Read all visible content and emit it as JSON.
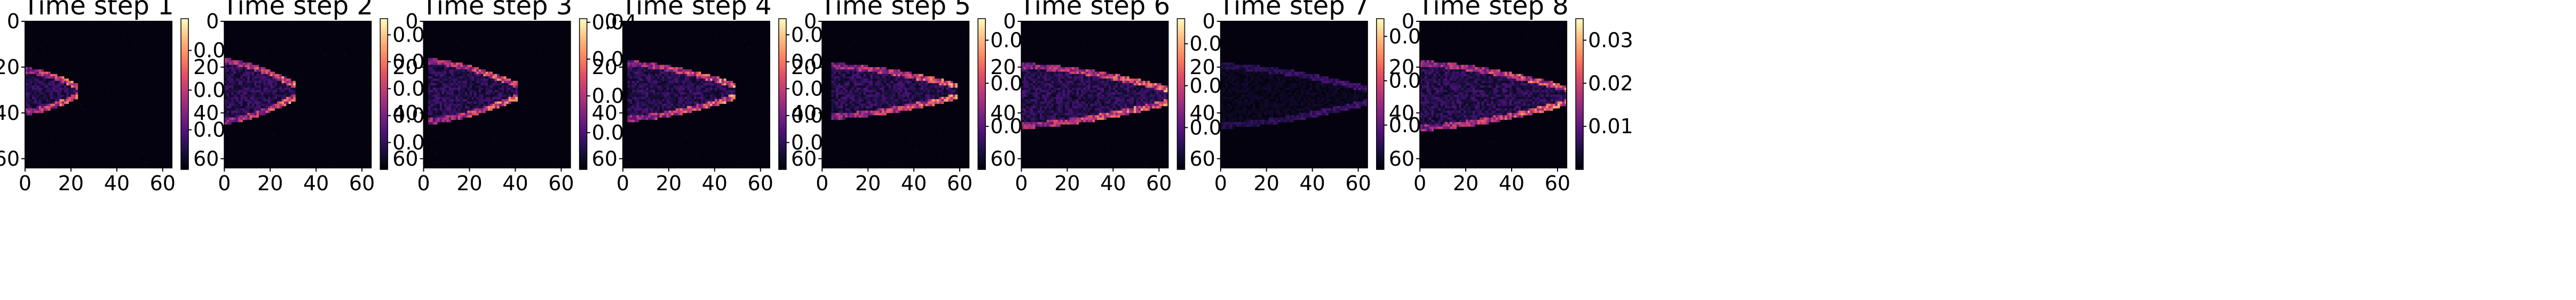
{
  "chart_data": [
    {
      "type": "heatmap",
      "title": "Time step 1",
      "x_ticks": [
        0,
        20,
        40,
        60
      ],
      "y_ticks": [
        0,
        20,
        40,
        60
      ],
      "xlim": [
        0,
        64
      ],
      "ylim": [
        64,
        0
      ],
      "colormap": "magma",
      "colorbar": {
        "ticks": [
          0.01,
          0.02,
          0.03
        ],
        "tick_labels": [
          "0.01",
          "0.02",
          "0.03"
        ],
        "range": [
          0,
          0.038
        ]
      },
      "features": {
        "tip_x": 22,
        "x_start": 0,
        "y_center": 30,
        "half_height": 8,
        "peak": 0.038
      }
    },
    {
      "type": "heatmap",
      "title": "Time step 2",
      "x_ticks": [
        0,
        20,
        40,
        60
      ],
      "y_ticks": [
        0,
        20,
        40,
        60
      ],
      "xlim": [
        0,
        64
      ],
      "ylim": [
        64,
        0
      ],
      "colormap": "magma",
      "colorbar": {
        "ticks": [
          0.005,
          0.01,
          0.015,
          0.02,
          0.025
        ],
        "tick_labels": [
          "0.005",
          "0.010",
          "0.015",
          "0.020",
          "0.025"
        ],
        "range": [
          0,
          0.028
        ]
      },
      "features": {
        "tip_x": 30,
        "x_start": 0,
        "y_center": 30,
        "half_height": 12,
        "peak": 0.028
      }
    },
    {
      "type": "heatmap",
      "title": "Time step 3",
      "x_ticks": [
        0,
        20,
        40,
        60
      ],
      "y_ticks": [
        0,
        20,
        40,
        60
      ],
      "xlim": [
        0,
        64
      ],
      "ylim": [
        64,
        0
      ],
      "colormap": "magma",
      "colorbar": {
        "ticks": [
          0.01,
          0.02,
          0.03,
          0.04
        ],
        "tick_labels": [
          "0.01",
          "0.02",
          "0.03",
          "0.04"
        ],
        "range": [
          0,
          0.041
        ]
      },
      "features": {
        "tip_x": 40,
        "x_start": 2,
        "y_center": 30,
        "half_height": 12,
        "peak": 0.041
      }
    },
    {
      "type": "heatmap",
      "title": "Time step 4",
      "x_ticks": [
        0,
        20,
        40,
        60
      ],
      "y_ticks": [
        0,
        20,
        40,
        60
      ],
      "xlim": [
        0,
        64
      ],
      "ylim": [
        64,
        0
      ],
      "colormap": "magma",
      "colorbar": {
        "ticks": [
          0.005,
          0.01,
          0.015,
          0.02,
          0.025
        ],
        "tick_labels": [
          "0.005",
          "0.010",
          "0.015",
          "0.020",
          "0.025"
        ],
        "range": [
          0,
          0.028
        ]
      },
      "features": {
        "tip_x": 48,
        "x_start": 2,
        "y_center": 30,
        "half_height": 11,
        "peak": 0.028
      }
    },
    {
      "type": "heatmap",
      "title": "Time step 5",
      "x_ticks": [
        0,
        20,
        40,
        60
      ],
      "y_ticks": [
        0,
        20,
        40,
        60
      ],
      "xlim": [
        0,
        64
      ],
      "ylim": [
        64,
        0
      ],
      "colormap": "magma",
      "colorbar": {
        "ticks": [
          0.01,
          0.02,
          0.03
        ],
        "tick_labels": [
          "0.01",
          "0.02",
          "0.03"
        ],
        "range": [
          0,
          0.035
        ]
      },
      "features": {
        "tip_x": 58,
        "x_start": 4,
        "y_center": 30,
        "half_height": 10,
        "peak": 0.035
      }
    },
    {
      "type": "heatmap",
      "title": "Time step 6",
      "x_ticks": [
        0,
        20,
        40,
        60
      ],
      "y_ticks": [
        0,
        20,
        40,
        60
      ],
      "xlim": [
        0,
        64
      ],
      "ylim": [
        64,
        0
      ],
      "colormap": "magma",
      "colorbar": {
        "ticks": [
          0.01,
          0.02,
          0.03
        ],
        "tick_labels": [
          "0.01",
          "0.02",
          "0.03"
        ],
        "range": [
          0,
          0.036
        ]
      },
      "features": {
        "tip_x": 64,
        "x_start": 0,
        "y_center": 32,
        "half_height": 12,
        "peak": 0.036
      }
    },
    {
      "type": "heatmap",
      "title": "Time step 7",
      "x_ticks": [
        0,
        20,
        40,
        60
      ],
      "y_ticks": [
        0,
        20,
        40,
        60
      ],
      "xlim": [
        0,
        64
      ],
      "ylim": [
        64,
        0
      ],
      "colormap": "magma",
      "colorbar": {
        "ticks": [
          0.02,
          0.04,
          0.06
        ],
        "tick_labels": [
          "0.02",
          "0.04",
          "0.06"
        ],
        "range": [
          0,
          0.068
        ]
      },
      "features": {
        "tip_x": 64,
        "x_start": 0,
        "y_center": 32,
        "half_height": 12,
        "peak": 0.068,
        "dim": true
      }
    },
    {
      "type": "heatmap",
      "title": "Time step 8",
      "x_ticks": [
        0,
        20,
        40,
        60
      ],
      "y_ticks": [
        0,
        20,
        40,
        60
      ],
      "xlim": [
        0,
        64
      ],
      "ylim": [
        64,
        0
      ],
      "colormap": "magma",
      "colorbar": {
        "ticks": [
          0.01,
          0.02,
          0.03
        ],
        "tick_labels": [
          "0.01",
          "0.02",
          "0.03"
        ],
        "range": [
          0,
          0.035
        ]
      },
      "features": {
        "tip_x": 64,
        "x_start": 0,
        "y_center": 32,
        "half_height": 13,
        "peak": 0.035
      }
    }
  ]
}
